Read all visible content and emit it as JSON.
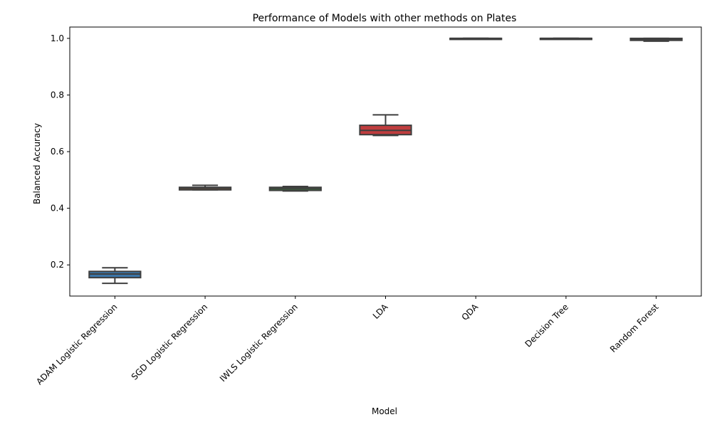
{
  "chart_data": {
    "type": "box",
    "title": "Performance of Models with other methods on Plates",
    "xlabel": "Model",
    "ylabel": "Balanced Accuracy",
    "ylim": [
      0.09,
      1.04
    ],
    "yticks": [
      0.2,
      0.4,
      0.6,
      0.8,
      1.0
    ],
    "ytick_labels": [
      "0.2",
      "0.4",
      "0.6",
      "0.8",
      "1.0"
    ],
    "grid": false,
    "categories": [
      "ADAM Logistic Regression",
      "SGD Logistic Regression",
      "IWLS Logistic Regression",
      "LDA",
      "QDA",
      "Decision Tree",
      "Random Forest"
    ],
    "boxes": [
      {
        "min": 0.135,
        "q1": 0.155,
        "median": 0.168,
        "q3": 0.177,
        "max": 0.19,
        "color": "#3a75a8"
      },
      {
        "min": 0.465,
        "q1": 0.465,
        "median": 0.47,
        "q3": 0.474,
        "max": 0.481,
        "color": "#e1812c"
      },
      {
        "min": 0.461,
        "q1": 0.463,
        "median": 0.469,
        "q3": 0.474,
        "max": 0.477,
        "color": "#3a923a"
      },
      {
        "min": 0.657,
        "q1": 0.66,
        "median": 0.675,
        "q3": 0.693,
        "max": 0.73,
        "color": "#c03d3e"
      },
      {
        "min": 1.0,
        "q1": 1.0,
        "median": 1.0,
        "q3": 1.0,
        "max": 1.0,
        "color": "#9372b2"
      },
      {
        "min": 1.0,
        "q1": 1.0,
        "median": 1.0,
        "q3": 1.0,
        "max": 1.0,
        "color": "#845b53"
      },
      {
        "min": 0.99,
        "q1": 0.993,
        "median": 0.997,
        "q3": 1.0,
        "max": 1.0,
        "color": "#d684bd"
      }
    ]
  }
}
